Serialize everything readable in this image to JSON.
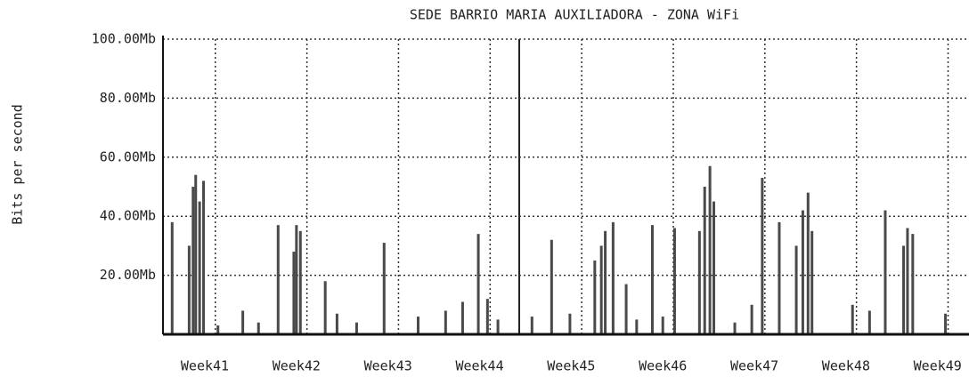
{
  "chart_data": {
    "type": "bar",
    "title": "SEDE BARRIO MARIA AUXILIADORA - ZONA WiFi",
    "y_label": "Bits per second",
    "color": "#4a4a4a",
    "x": [
      0.7,
      2.0,
      2.3,
      2.5,
      2.8,
      3.1,
      4.2,
      6.1,
      7.3,
      8.8,
      10.0,
      10.2,
      10.5,
      12.4,
      13.3,
      14.8,
      16.9,
      19.5,
      21.6,
      22.9,
      24.1,
      24.8,
      25.6,
      28.2,
      29.7,
      31.1,
      33.0,
      33.5,
      33.8,
      34.4,
      35.4,
      36.2,
      37.4,
      38.2,
      39.1,
      41.0,
      41.4,
      41.8,
      42.1,
      43.7,
      45.0,
      45.8,
      47.1,
      48.4,
      48.9,
      49.3,
      49.6,
      52.7,
      54.0,
      55.2,
      56.6,
      56.9,
      57.3,
      59.8
    ],
    "values": [
      38,
      30,
      50,
      54,
      45,
      52,
      3,
      8,
      4,
      37,
      28,
      37,
      35,
      18,
      7,
      4,
      31,
      6,
      8,
      11,
      34,
      12,
      5,
      6,
      32,
      7,
      25,
      30,
      35,
      38,
      17,
      5,
      37,
      6,
      36,
      35,
      50,
      57,
      45,
      4,
      10,
      53,
      38,
      30,
      42,
      48,
      35,
      10,
      8,
      42,
      30,
      36,
      34,
      7
    ],
    "xlim": [
      0,
      61.6
    ],
    "xticks": [
      {
        "value": 3.2,
        "label": "Week41"
      },
      {
        "value": 10.2,
        "label": "Week42"
      },
      {
        "value": 17.2,
        "label": "Week43"
      },
      {
        "value": 24.2,
        "label": "Week44"
      },
      {
        "value": 31.2,
        "label": "Week45"
      },
      {
        "value": 38.2,
        "label": "Week46"
      },
      {
        "value": 45.2,
        "label": "Week47"
      },
      {
        "value": 52.2,
        "label": "Week48"
      },
      {
        "value": 59.2,
        "label": "Week49"
      }
    ],
    "xgrid": [
      4,
      11,
      18,
      25,
      32,
      39,
      46,
      53,
      60
    ],
    "ylim": [
      0,
      100
    ],
    "yticks": [
      {
        "value": 20,
        "label": "20.00Mb"
      },
      {
        "value": 40,
        "label": "40.00Mb"
      },
      {
        "value": 60,
        "label": "60.00Mb"
      },
      {
        "value": 80,
        "label": "80.00Mb"
      },
      {
        "value": 100,
        "label": "100.00Mb"
      }
    ],
    "grid": true
  }
}
